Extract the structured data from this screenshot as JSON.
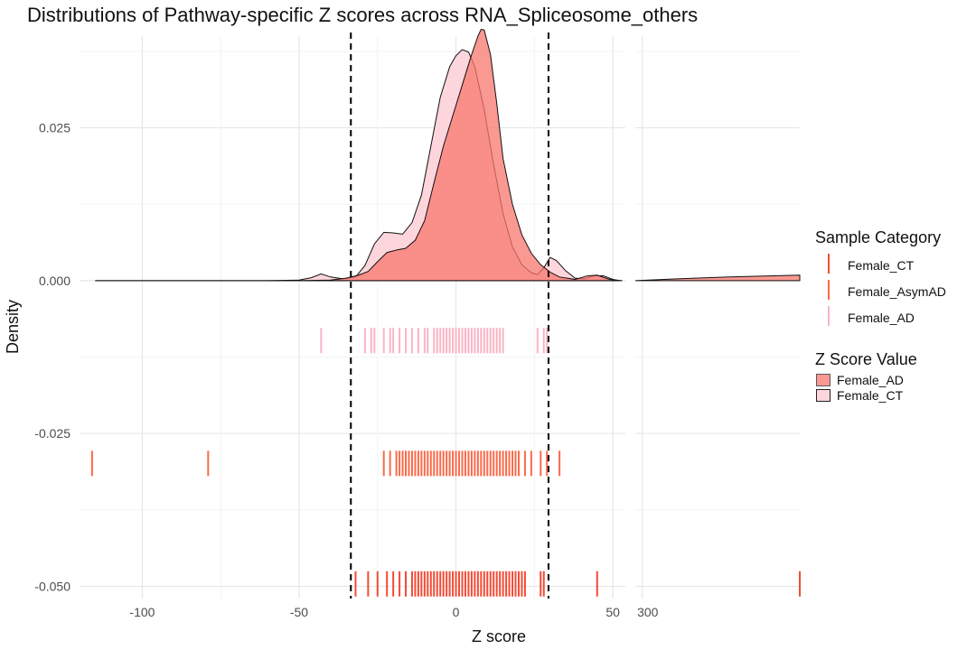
{
  "title": "Distributions of Pathway-specific Z scores across RNA_Spliceosome_others",
  "chart_data": {
    "type": "density",
    "title": "Distributions of Pathway-specific Z scores across RNA_Spliceosome_others",
    "xlabel": "Z score",
    "ylabel": "Density",
    "panels": [
      {
        "name": "main",
        "xlim": [
          -120,
          54
        ],
        "xticks": [
          -100,
          -50,
          0,
          50
        ]
      },
      {
        "name": "outlier",
        "xlim": [
          298,
          345
        ],
        "xticks": [
          300
        ]
      }
    ],
    "ylim": [
      -0.052,
      0.04
    ],
    "yticks": [
      0.025,
      0.0,
      -0.025,
      -0.05
    ],
    "ytick_labels": [
      "0.025",
      "0.000",
      "-0.025",
      "-0.050"
    ],
    "xtick_labels": [
      "-100",
      "-50",
      "0",
      "50",
      "300"
    ],
    "vlines": [
      -33.5,
      29.5
    ],
    "density_series": [
      {
        "name": "Female_CT",
        "color": "#FDD5DC",
        "points": [
          [
            -115,
            0
          ],
          [
            -60,
            0
          ],
          [
            -50,
            0.0001
          ],
          [
            -46,
            0.0005
          ],
          [
            -43,
            0.0011
          ],
          [
            -40,
            0.0006
          ],
          [
            -36,
            0.0003
          ],
          [
            -32,
            0.0006
          ],
          [
            -29,
            0.0025
          ],
          [
            -26,
            0.006
          ],
          [
            -23,
            0.0079
          ],
          [
            -20,
            0.0078
          ],
          [
            -17,
            0.0076
          ],
          [
            -14,
            0.0095
          ],
          [
            -11,
            0.014
          ],
          [
            -8,
            0.022
          ],
          [
            -5,
            0.03
          ],
          [
            -2,
            0.035
          ],
          [
            0,
            0.0368
          ],
          [
            2,
            0.0378
          ],
          [
            4,
            0.0374
          ],
          [
            6,
            0.035
          ],
          [
            9,
            0.028
          ],
          [
            12,
            0.019
          ],
          [
            15,
            0.011
          ],
          [
            18,
            0.0055
          ],
          [
            21,
            0.0026
          ],
          [
            24,
            0.0013
          ],
          [
            26,
            0.001
          ],
          [
            28,
            0.0021
          ],
          [
            30,
            0.0038
          ],
          [
            32,
            0.0033
          ],
          [
            35,
            0.0016
          ],
          [
            38,
            0.0004
          ],
          [
            41,
            0.0003
          ],
          [
            44,
            0.0008
          ],
          [
            47,
            0.0008
          ],
          [
            50,
            0.0002
          ],
          [
            52,
            0
          ]
        ]
      },
      {
        "name": "Female_AD",
        "color": "#F8766D",
        "points": [
          [
            -115,
            0
          ],
          [
            -50,
            0
          ],
          [
            -40,
            0.0001
          ],
          [
            -35,
            0.0004
          ],
          [
            -31,
            0.0009
          ],
          [
            -28,
            0.0015
          ],
          [
            -25,
            0.0031
          ],
          [
            -22,
            0.0046
          ],
          [
            -19,
            0.005
          ],
          [
            -16,
            0.0053
          ],
          [
            -13,
            0.0066
          ],
          [
            -10,
            0.0098
          ],
          [
            -7,
            0.016
          ],
          [
            -4,
            0.022
          ],
          [
            -1,
            0.027
          ],
          [
            2,
            0.032
          ],
          [
            5,
            0.037
          ],
          [
            7,
            0.04
          ],
          [
            8,
            0.0411
          ],
          [
            9,
            0.041
          ],
          [
            11,
            0.037
          ],
          [
            13,
            0.029
          ],
          [
            15,
            0.02
          ],
          [
            18,
            0.0125
          ],
          [
            21,
            0.0075
          ],
          [
            24,
            0.0045
          ],
          [
            27,
            0.0026
          ],
          [
            30,
            0.0014
          ],
          [
            33,
            0.0006
          ],
          [
            38,
            0.0002
          ],
          [
            42,
            0.0008
          ],
          [
            45,
            0.0009
          ],
          [
            49,
            0.0002
          ],
          [
            53,
            0
          ]
        ]
      },
      {
        "name": "Female_AD_tail",
        "color": "#F8766D",
        "points": [
          [
            298,
            0
          ],
          [
            310,
            0.0003
          ],
          [
            325,
            0.0006
          ],
          [
            345,
            0.0009
          ]
        ]
      }
    ],
    "rug_series": [
      {
        "name": "Female_AD",
        "color": "#FBB4C4",
        "y": -0.0098,
        "values": [
          -43,
          -29,
          -27,
          -26,
          -23,
          -21,
          -20,
          -18,
          -16,
          -14,
          -12,
          -10,
          -9,
          -7,
          -6,
          -5,
          -4,
          -3,
          -2,
          -1,
          0,
          1,
          2,
          3,
          4,
          5,
          6,
          7,
          8,
          9,
          10,
          11,
          12,
          13,
          14,
          15,
          26,
          28,
          29
        ]
      },
      {
        "name": "Female_AsymAD",
        "color": "#FB6A4A",
        "y": -0.0299,
        "values": [
          -116,
          -79,
          -23,
          -21,
          -19,
          -18,
          -17,
          -16,
          -15,
          -14,
          -13,
          -12,
          -11,
          -10,
          -9,
          -8,
          -7,
          -6,
          -5,
          -4,
          -3,
          -2,
          -1,
          0,
          1,
          2,
          3,
          4,
          5,
          6,
          7,
          8,
          9,
          10,
          11,
          12,
          13,
          14,
          15,
          16,
          17,
          18,
          19,
          20,
          22,
          24,
          27,
          29,
          33
        ]
      },
      {
        "name": "Female_CT",
        "color": "#F44B36",
        "y": -0.0496,
        "values": [
          -32,
          -28,
          -25,
          -22,
          -20,
          -18,
          -16,
          -14,
          -13,
          -12,
          -11,
          -10,
          -9,
          -8,
          -7,
          -6,
          -5,
          -4,
          -3,
          -2,
          -1,
          0,
          1,
          2,
          3,
          4,
          5,
          6,
          7,
          8,
          9,
          10,
          11,
          12,
          13,
          14,
          15,
          16,
          17,
          18,
          19,
          20,
          21,
          22,
          27,
          28,
          45,
          345
        ]
      }
    ]
  },
  "legend_rug": {
    "title": "Sample Category",
    "items": [
      {
        "label": "Female_CT",
        "color": "#F44B36"
      },
      {
        "label": "Female_AsymAD",
        "color": "#FB6A4A"
      },
      {
        "label": "Female_AD",
        "color": "#FBB4C4"
      }
    ]
  },
  "legend_fill": {
    "title": "Z Score Value",
    "items": [
      {
        "label": "Female_AD",
        "color": "#F8766D"
      },
      {
        "label": "Female_CT",
        "color": "#FDD5DC"
      }
    ]
  }
}
